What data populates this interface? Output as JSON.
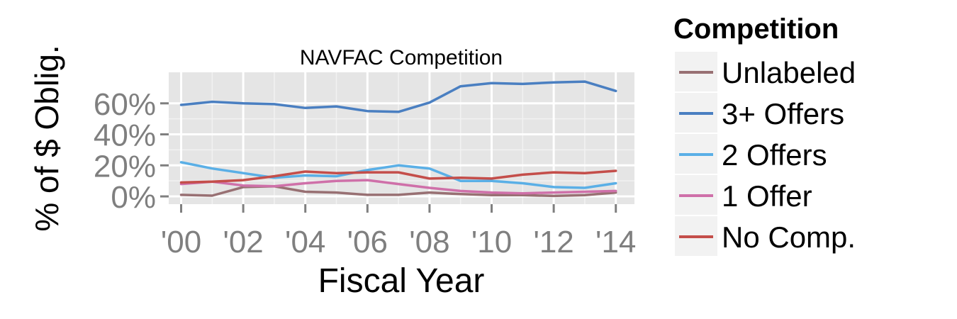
{
  "chart_data": {
    "type": "line",
    "title": "NAVFAC Competition",
    "xlabel": "Fiscal Year",
    "ylabel": "% of $ Oblig.",
    "x": [
      2000,
      2001,
      2002,
      2003,
      2004,
      2005,
      2006,
      2007,
      2008,
      2009,
      2010,
      2011,
      2012,
      2013,
      2014
    ],
    "x_ticks": [
      2000,
      2002,
      2004,
      2006,
      2008,
      2010,
      2012,
      2014
    ],
    "x_tick_labels": [
      "'00",
      "'02",
      "'04",
      "'06",
      "'08",
      "'10",
      "'12",
      "'14"
    ],
    "y_ticks": [
      0,
      20,
      40,
      60
    ],
    "y_tick_labels": [
      "0%",
      "20%",
      "40%",
      "60%"
    ],
    "xlim": [
      1999.6,
      2014.6
    ],
    "ylim": [
      -5,
      80
    ],
    "grid": true,
    "legend_title": "Competition",
    "legend_position": "right",
    "series": [
      {
        "name": "Unlabeled",
        "color": "#987073",
        "values": [
          1,
          0.5,
          6,
          6.5,
          3,
          2.5,
          1,
          1,
          2.5,
          1.5,
          0.8,
          0.8,
          0.3,
          0.8,
          2.5
        ]
      },
      {
        "name": "3+ Offers",
        "color": "#4a7fc1",
        "values": [
          59,
          61,
          60,
          59.5,
          57,
          58,
          55,
          54.5,
          60.5,
          71,
          73,
          72.5,
          73.5,
          74,
          68
        ]
      },
      {
        "name": "2 Offers",
        "color": "#5aafe6",
        "values": [
          22,
          18,
          15,
          12,
          13.5,
          13,
          17,
          20,
          18,
          10,
          10,
          8.5,
          6,
          5.5,
          8.5
        ]
      },
      {
        "name": "1 Offer",
        "color": "#cf70a9",
        "values": [
          8,
          9.5,
          7,
          6.5,
          8.5,
          10,
          10.5,
          8,
          5.5,
          3.5,
          2.5,
          2,
          2.5,
          3,
          3.5
        ]
      },
      {
        "name": "No Comp.",
        "color": "#c44e4a",
        "values": [
          9,
          9.5,
          10.5,
          13,
          16,
          15,
          15.5,
          15.5,
          11.5,
          12,
          11.5,
          14,
          15.5,
          15,
          16.5
        ]
      }
    ]
  }
}
